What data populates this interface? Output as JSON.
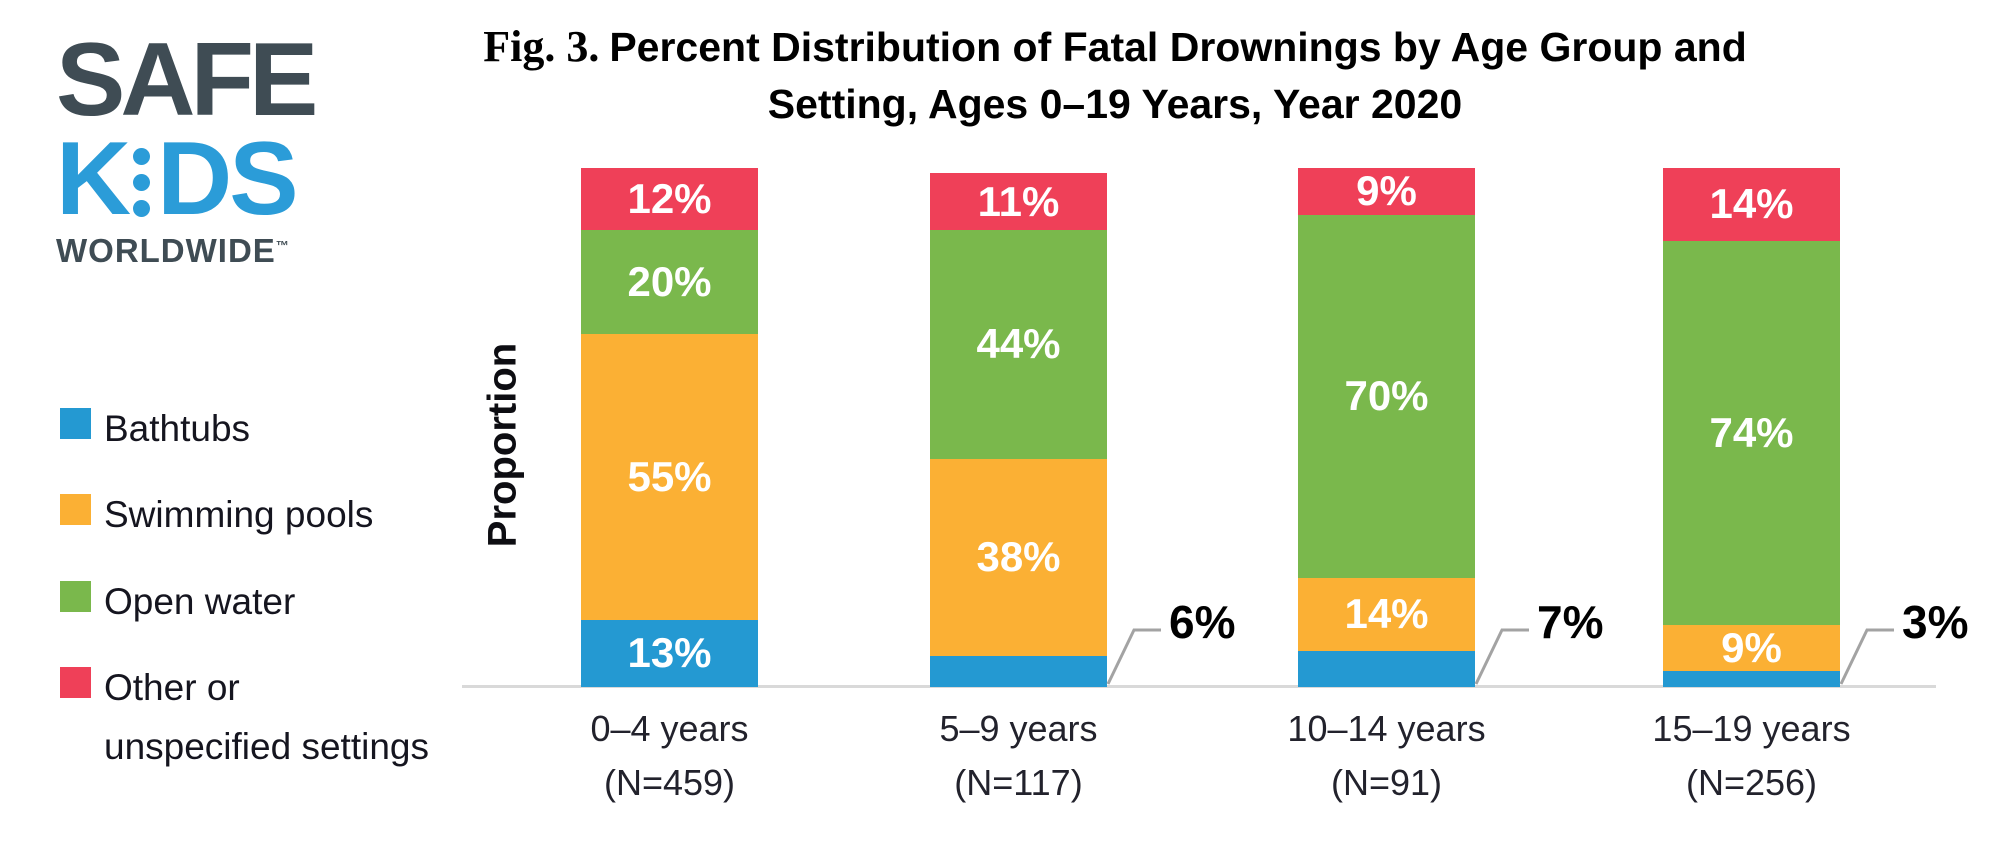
{
  "logo": {
    "safe": "SAFE",
    "kids_k": "K",
    "kids_ds": "DS",
    "worldwide": "WORLDWIDE",
    "tm": "™",
    "colors": {
      "slate": "#3F4C54",
      "blue": "#2B9CD8"
    }
  },
  "title": {
    "fig": "Fig. 3.",
    "line1": "Percent Distribution of Fatal Drownings by Age Group and",
    "line2": "Setting, Ages 0–19 Years, Year 2020"
  },
  "chart_data": {
    "type": "bar",
    "subtype": "stacked-percent-column",
    "title": "Fig. 3. Percent Distribution of Fatal Drownings by Age Group and Setting, Ages 0–19 Years, Year 2020",
    "ylabel": "Proportion",
    "xlabel": "",
    "ylim": [
      0,
      100
    ],
    "grid": false,
    "legend_position": "left",
    "value_suffix": "%",
    "categories": [
      "0–4 years",
      "5–9 years",
      "10–14 years",
      "15–19 years"
    ],
    "category_sublabels": [
      "(N=459)",
      "(N=117)",
      "(N=91)",
      "(N=256)"
    ],
    "series": [
      {
        "name": "Bathtubs",
        "color": "#2499D2",
        "values": [
          13,
          6,
          7,
          3
        ]
      },
      {
        "name": "Swimming pools",
        "color": "#FBB034",
        "values": [
          55,
          38,
          14,
          9
        ]
      },
      {
        "name": "Open water",
        "color": "#7AB84C",
        "values": [
          20,
          44,
          70,
          74
        ]
      },
      {
        "name": "Other or unspecified settings",
        "color": "#EF4058",
        "values": [
          12,
          11,
          9,
          14
        ]
      }
    ],
    "callouts": [
      {
        "category_index": 1,
        "series_index": 0,
        "label": "6%"
      },
      {
        "category_index": 2,
        "series_index": 0,
        "label": "7%"
      },
      {
        "category_index": 3,
        "series_index": 0,
        "label": "3%"
      }
    ]
  },
  "legend": {
    "items": [
      {
        "lines": [
          "Bathtubs"
        ]
      },
      {
        "lines": [
          "Swimming pools"
        ]
      },
      {
        "lines": [
          "Open water"
        ]
      },
      {
        "lines": [
          "Other or",
          "unspecified settings"
        ]
      }
    ]
  },
  "colors": {
    "axis_line": "#D9D9D9",
    "callout_line": "#A3A3A3",
    "segment_label_text": "#FFFFFF",
    "callout_text": "#000000",
    "title_text": "#000000"
  }
}
